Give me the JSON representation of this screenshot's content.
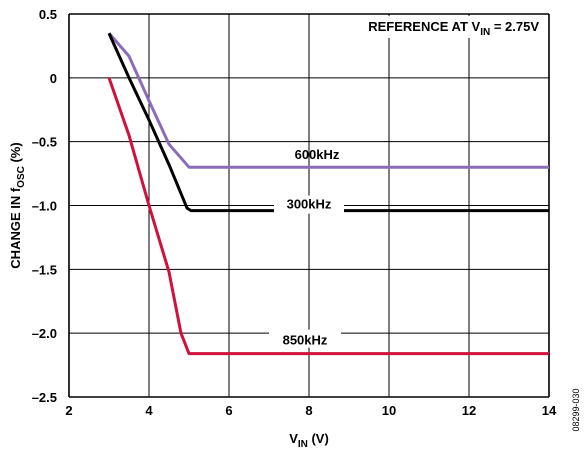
{
  "chart_data": {
    "type": "line",
    "title": "",
    "annotation": {
      "prefix": "REFERENCE AT V",
      "sub": "IN",
      "suffix": " = 2.75V"
    },
    "xlabel": {
      "main": "V",
      "sub": "IN",
      "suffix": " (V)"
    },
    "ylabel": {
      "prefix": "CHANGE IN f",
      "sub": "OSC",
      "suffix": " (%)"
    },
    "xlim": [
      2,
      14
    ],
    "ylim": [
      -2.5,
      0.5
    ],
    "xticks": [
      2,
      4,
      6,
      8,
      10,
      12,
      14
    ],
    "xtick_labels": [
      "2",
      "4",
      "6",
      "8",
      "10",
      "12",
      "14"
    ],
    "yticks": [
      0.5,
      0,
      -0.5,
      -1.0,
      -1.5,
      -2.0,
      -2.5
    ],
    "ytick_labels": [
      "0.5",
      "0",
      "–0.5",
      "–1.0",
      "–1.5",
      "–2.0",
      "–2.5"
    ],
    "grid": true,
    "series": [
      {
        "name": "600kHz",
        "color": "#8b6cb8",
        "x": [
          3.0,
          3.5,
          4.0,
          4.5,
          5.0,
          14.0
        ],
        "y": [
          0.35,
          0.17,
          -0.18,
          -0.52,
          -0.7,
          -0.7
        ]
      },
      {
        "name": "300kHz",
        "color": "#000000",
        "x": [
          3.0,
          3.5,
          4.0,
          4.5,
          4.95,
          5.05,
          14.0
        ],
        "y": [
          0.35,
          0.0,
          -0.33,
          -0.68,
          -1.02,
          -1.04,
          -1.04
        ]
      },
      {
        "name": "850kHz",
        "color": "#d0113a",
        "x": [
          3.0,
          3.5,
          4.0,
          4.5,
          4.8,
          5.0,
          14.0
        ],
        "y": [
          0.0,
          -0.45,
          -1.0,
          -1.52,
          -2.0,
          -2.16,
          -2.16
        ]
      }
    ],
    "series_labels": [
      "600kHz",
      "300kHz",
      "850kHz"
    ]
  },
  "side_code": "08299-030"
}
